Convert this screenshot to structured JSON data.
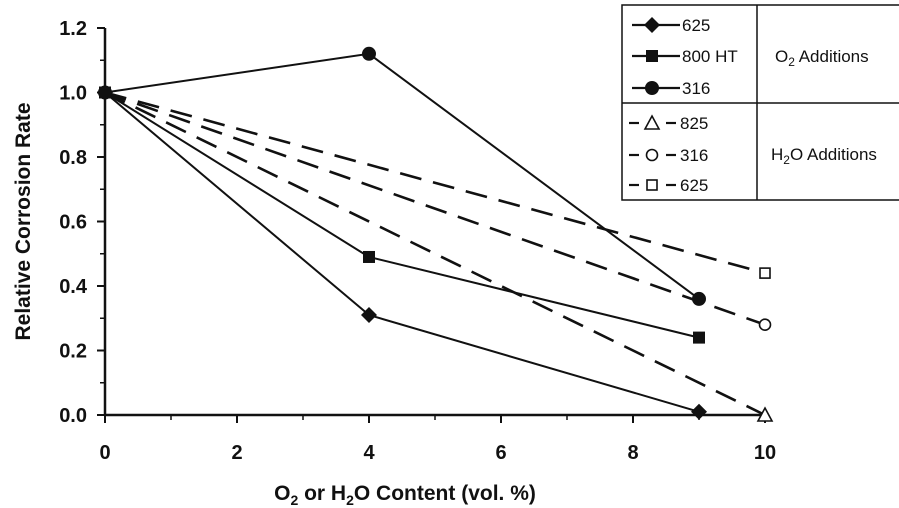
{
  "chart_data": {
    "type": "line",
    "xlabel_parts": {
      "a": "O",
      "a_sub": "2",
      "b": " or H",
      "b_sub": "2",
      "c": "O Content (vol. %)"
    },
    "ylabel": "Relative Corrosion Rate",
    "xlim": [
      0,
      10
    ],
    "ylim": [
      0,
      1.2
    ],
    "xticks": [
      "0",
      "2",
      "4",
      "6",
      "8",
      "10"
    ],
    "yticks": [
      "0.0",
      "0.2",
      "0.4",
      "0.6",
      "0.8",
      "1.0",
      "1.2"
    ],
    "series": [
      {
        "name": "625",
        "group": "O2",
        "style": "solid",
        "marker": "diamond",
        "x": [
          0,
          4,
          9
        ],
        "y": [
          1.0,
          0.31,
          0.01
        ]
      },
      {
        "name": "800 HT",
        "group": "O2",
        "style": "solid",
        "marker": "square",
        "x": [
          0,
          4,
          9
        ],
        "y": [
          1.0,
          0.49,
          0.24
        ]
      },
      {
        "name": "316",
        "group": "O2",
        "style": "solid",
        "marker": "circle",
        "x": [
          0,
          4,
          9
        ],
        "y": [
          1.0,
          1.12,
          0.36
        ]
      },
      {
        "name": "825",
        "group": "H2O",
        "style": "dashed",
        "marker": "triangle-open",
        "x": [
          0,
          10
        ],
        "y": [
          1.0,
          0.0
        ]
      },
      {
        "name": "316",
        "group": "H2O",
        "style": "dashed",
        "marker": "circle-open",
        "x": [
          0,
          10
        ],
        "y": [
          1.0,
          0.28
        ]
      },
      {
        "name": "625",
        "group": "H2O",
        "style": "dashed",
        "marker": "square-open",
        "x": [
          0,
          10
        ],
        "y": [
          1.0,
          0.44
        ]
      }
    ],
    "legend": {
      "placement": "top-right",
      "groups": [
        {
          "label_main": "O",
          "label_sub": "2",
          "label_rest": " Additions"
        },
        {
          "label_main": "H",
          "label_sub": "2",
          "label_rest": "O Additions"
        }
      ]
    },
    "colors": {
      "line": "#111111",
      "background": "#ffffff"
    }
  }
}
